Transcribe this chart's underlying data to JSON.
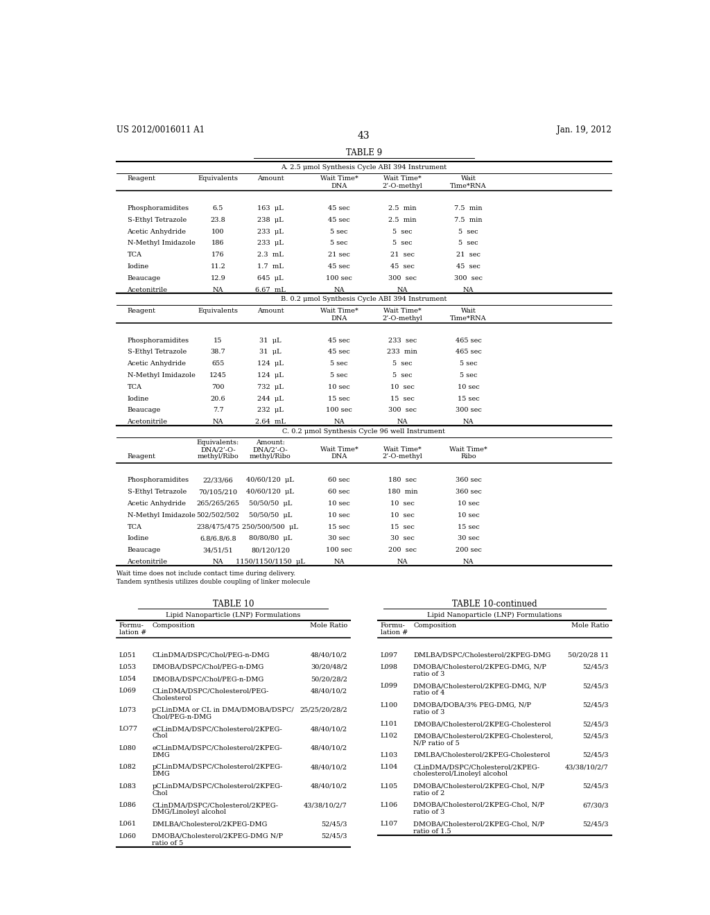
{
  "header_left": "US 2012/0016011 A1",
  "header_right": "Jan. 19, 2012",
  "page_number": "43",
  "table9_title": "TABLE 9",
  "tableA_title": "A. 2.5 μmol Synthesis Cycle ABI 394 Instrument",
  "tableB_title": "B. 0.2 μmol Synthesis Cycle ABI 394 Instrument",
  "tableC_title": "C. 0.2 μmol Synthesis Cycle 96 well Instrument",
  "tableA_data": [
    [
      "Phosphoramidites",
      "6.5",
      "163  μL",
      "45 sec",
      "2.5  min",
      "7.5  min"
    ],
    [
      "S-Ethyl Tetrazole",
      "23.8",
      "238  μL",
      "45 sec",
      "2.5  min",
      "7.5  min"
    ],
    [
      "Acetic Anhydride",
      "100",
      "233  μL",
      "5 sec",
      "5  sec",
      "5  sec"
    ],
    [
      "N-Methyl Imidazole",
      "186",
      "233  μL",
      "5 sec",
      "5  sec",
      "5  sec"
    ],
    [
      "TCA",
      "176",
      "2.3  mL",
      "21 sec",
      "21  sec",
      "21  sec"
    ],
    [
      "Iodine",
      "11.2",
      "1.7  mL",
      "45 sec",
      "45  sec",
      "45  sec"
    ],
    [
      "Beaucage",
      "12.9",
      "645  μL",
      "100 sec",
      "300  sec",
      "300  sec"
    ],
    [
      "Acetonitrile",
      "NA",
      "6.67  mL",
      "NA",
      "NA",
      "NA"
    ]
  ],
  "tableB_data": [
    [
      "Phosphoramidites",
      "15",
      "31  μL",
      "45 sec",
      "233  sec",
      "465 sec"
    ],
    [
      "S-Ethyl Tetrazole",
      "38.7",
      "31  μL",
      "45 sec",
      "233  min",
      "465 sec"
    ],
    [
      "Acetic Anhydride",
      "655",
      "124  μL",
      "5 sec",
      "5  sec",
      "5 sec"
    ],
    [
      "N-Methyl Imidazole",
      "1245",
      "124  μL",
      "5 sec",
      "5  sec",
      "5 sec"
    ],
    [
      "TCA",
      "700",
      "732  μL",
      "10 sec",
      "10  sec",
      "10 sec"
    ],
    [
      "Iodine",
      "20.6",
      "244  μL",
      "15 sec",
      "15  sec",
      "15 sec"
    ],
    [
      "Beaucage",
      "7.7",
      "232  μL",
      "100 sec",
      "300  sec",
      "300 sec"
    ],
    [
      "Acetonitrile",
      "NA",
      "2.64  mL",
      "NA",
      "NA",
      "NA"
    ]
  ],
  "tableC_data": [
    [
      "Phosphoramidites",
      "22/33/66",
      "40/60/120  μL",
      "60 sec",
      "180  sec",
      "360 sec"
    ],
    [
      "S-Ethyl Tetrazole",
      "70/105/210",
      "40/60/120  μL",
      "60 sec",
      "180  min",
      "360 sec"
    ],
    [
      "Acetic Anhydride",
      "265/265/265",
      "50/50/50  μL",
      "10 sec",
      "10  sec",
      "10 sec"
    ],
    [
      "N-Methyl Imidazole",
      "502/502/502",
      "50/50/50  μL",
      "10 sec",
      "10  sec",
      "10 sec"
    ],
    [
      "TCA",
      "238/475/475",
      "250/500/500  μL",
      "15 sec",
      "15  sec",
      "15 sec"
    ],
    [
      "Iodine",
      "6.8/6.8/6.8",
      "80/80/80  μL",
      "30 sec",
      "30  sec",
      "30 sec"
    ],
    [
      "Beaucage",
      "34/51/51",
      "80/120/120",
      "100 sec",
      "200  sec",
      "200 sec"
    ],
    [
      "Acetonitrile",
      "NA",
      "1150/1150/1150  μL",
      "NA",
      "NA",
      "NA"
    ]
  ],
  "footnotes": [
    "Wait time does not include contact time during delivery.",
    "Tandem synthesis utilizes double coupling of linker molecule"
  ],
  "table10_title": "TABLE 10",
  "table10_cont_title": "TABLE 10-continued",
  "table10_subtitle": "Lipid Nanoparticle (LNP) Formulations",
  "table10_cont_subtitle": "Lipid Nanoparticle (LNP) Formulations",
  "table10_data": [
    [
      "L051",
      "CLinDMA/DSPC/Chol/PEG-n-DMG",
      "48/40/10/2"
    ],
    [
      "L053",
      "DMOBA/DSPC/Chol/PEG-n-DMG",
      "30/20/48/2"
    ],
    [
      "L054",
      "DMOBA/DSPC/Chol/PEG-n-DMG",
      "50/20/28/2"
    ],
    [
      "L069",
      "CLinDMA/DSPC/Cholesterol/PEG-\nCholesterol",
      "48/40/10/2"
    ],
    [
      "L073",
      "pCLinDMA or CL in DMA/DMOBA/DSPC/\nChol/PEG-n-DMG",
      "25/25/20/28/2"
    ],
    [
      "LO77",
      "eCLinDMA/DSPC/Cholesterol/2KPEG-\nChol",
      "48/40/10/2"
    ],
    [
      "L080",
      "eCLinDMA/DSPC/Cholesterol/2KPEG-\nDMG",
      "48/40/10/2"
    ],
    [
      "L082",
      "pCLinDMA/DSPC/Cholesterol/2KPEG-\nDMG",
      "48/40/10/2"
    ],
    [
      "L083",
      "pCLinDMA/DSPC/Cholesterol/2KPEG-\nChol",
      "48/40/10/2"
    ],
    [
      "L086",
      "CLinDMA/DSPC/Cholesterol/2KPEG-\nDMG/Linoleyl alcohol",
      "43/38/10/2/7"
    ],
    [
      "L061",
      "DMLBA/Cholesterol/2KPEG-DMG",
      "52/45/3"
    ],
    [
      "L060",
      "DMOBA/Cholesterol/2KPEG-DMG N/P\nratio of 5",
      "52/45/3"
    ]
  ],
  "table10_cont_data": [
    [
      "L097",
      "DMLBA/DSPC/Cholesterol/2KPEG-DMG",
      "50/20/28 11"
    ],
    [
      "L098",
      "DMOBA/Cholesterol/2KPEG-DMG, N/P\nratio of 3",
      "52/45/3"
    ],
    [
      "L099",
      "DMOBA/Cholesterol/2KPEG-DMG, N/P\nratio of 4",
      "52/45/3"
    ],
    [
      "L100",
      "DMOBA/DOBA/3% PEG-DMG, N/P\nratio of 3",
      "52/45/3"
    ],
    [
      "L101",
      "DMOBA/Cholesterol/2KPEG-Cholesterol",
      "52/45/3"
    ],
    [
      "L102",
      "DMOBA/Cholesterol/2KPEG-Cholesterol,\nN/P ratio of 5",
      "52/45/3"
    ],
    [
      "L103",
      "DMLBA/Cholesterol/2KPEG-Cholesterol",
      "52/45/3"
    ],
    [
      "L104",
      "CLinDMA/DSPC/Cholesterol/2KPEG-\ncholesterol/Linoleyl alcohol",
      "43/38/10/2/7"
    ],
    [
      "L105",
      "DMOBA/Cholesterol/2KPEG-Chol, N/P\nratio of 2",
      "52/45/3"
    ],
    [
      "L106",
      "DMOBA/Cholesterol/2KPEG-Chol, N/P\nratio of 3",
      "67/30/3"
    ],
    [
      "L107",
      "DMOBA/Cholesterol/2KPEG-Chol, N/P\nratio of 1.5",
      "52/45/3"
    ]
  ]
}
